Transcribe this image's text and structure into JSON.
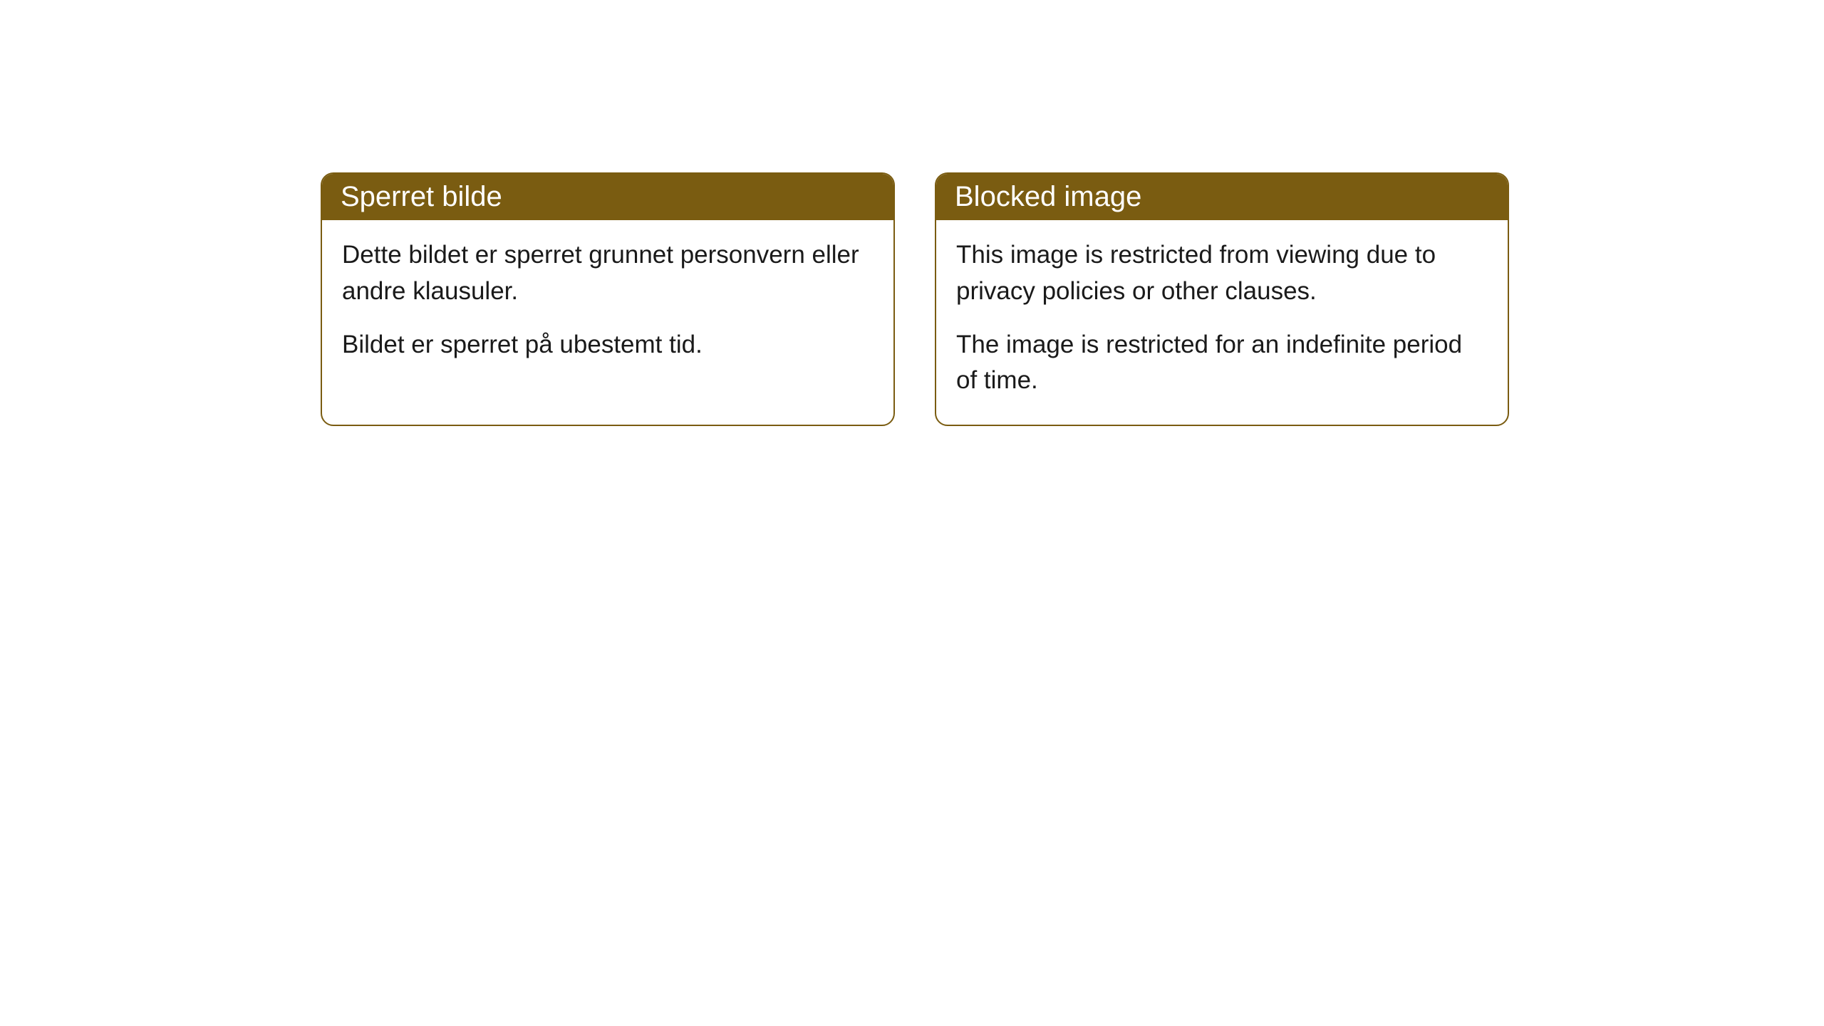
{
  "cards": [
    {
      "title": "Sperret bilde",
      "paragraph1": "Dette bildet er sperret grunnet personvern eller andre klausuler.",
      "paragraph2": "Bildet er sperret på ubestemt tid."
    },
    {
      "title": "Blocked image",
      "paragraph1": "This image is restricted from viewing due to privacy policies or other clauses.",
      "paragraph2": "The image is restricted for an indefinite period of time."
    }
  ],
  "styling": {
    "header_background": "#7a5c11",
    "header_text_color": "#ffffff",
    "card_border_color": "#7a5c11",
    "card_background": "#ffffff",
    "body_text_color": "#1a1a1a",
    "page_background": "#ffffff",
    "border_radius": 18,
    "title_fontsize": 40,
    "body_fontsize": 35
  }
}
